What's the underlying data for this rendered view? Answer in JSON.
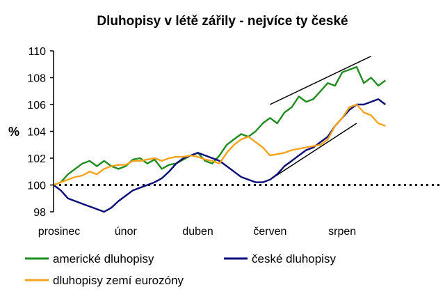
{
  "chart_data": {
    "type": "line",
    "title": "Dluhopisy v létě zářily - nejvíce ty české",
    "ylabel": "%",
    "xlabel": "",
    "ylim": [
      98,
      110
    ],
    "yticks": [
      98,
      100,
      102,
      104,
      106,
      108,
      110
    ],
    "xlim": [
      0,
      9.5
    ],
    "xtick_labels": [
      {
        "label": "prosinec",
        "x": 0
      },
      {
        "label": "únor",
        "x": 2
      },
      {
        "label": "duben",
        "x": 4
      },
      {
        "label": "červen",
        "x": 6
      },
      {
        "label": "srpen",
        "x": 8
      }
    ],
    "baseline": 100,
    "grid": false,
    "legend_position": "bottom",
    "series": [
      {
        "name": "americké dluhopisy",
        "color": "#1e8c1e",
        "points": [
          [
            0,
            100
          ],
          [
            0.2,
            100.2
          ],
          [
            0.4,
            100.8
          ],
          [
            0.6,
            101.2
          ],
          [
            0.8,
            101.6
          ],
          [
            1.0,
            101.8
          ],
          [
            1.2,
            101.4
          ],
          [
            1.4,
            101.8
          ],
          [
            1.6,
            101.4
          ],
          [
            1.8,
            101.2
          ],
          [
            2.0,
            101.4
          ],
          [
            2.2,
            101.9
          ],
          [
            2.4,
            102.0
          ],
          [
            2.6,
            101.6
          ],
          [
            2.8,
            101.9
          ],
          [
            3.0,
            101.2
          ],
          [
            3.2,
            101.5
          ],
          [
            3.4,
            101.6
          ],
          [
            3.6,
            101.9
          ],
          [
            3.8,
            102.2
          ],
          [
            4.0,
            102.4
          ],
          [
            4.2,
            101.8
          ],
          [
            4.4,
            101.6
          ],
          [
            4.6,
            102.2
          ],
          [
            4.8,
            103.0
          ],
          [
            5.0,
            103.4
          ],
          [
            5.2,
            103.8
          ],
          [
            5.4,
            103.6
          ],
          [
            5.6,
            104.0
          ],
          [
            5.8,
            104.6
          ],
          [
            6.0,
            105.0
          ],
          [
            6.2,
            104.6
          ],
          [
            6.4,
            105.4
          ],
          [
            6.6,
            105.8
          ],
          [
            6.8,
            106.6
          ],
          [
            7.0,
            106.2
          ],
          [
            7.2,
            106.4
          ],
          [
            7.4,
            107.0
          ],
          [
            7.6,
            107.6
          ],
          [
            7.8,
            107.4
          ],
          [
            8.0,
            108.4
          ],
          [
            8.2,
            108.6
          ],
          [
            8.4,
            108.8
          ],
          [
            8.6,
            107.6
          ],
          [
            8.8,
            108.0
          ],
          [
            9.0,
            107.4
          ],
          [
            9.1,
            107.6
          ],
          [
            9.2,
            107.8
          ]
        ]
      },
      {
        "name": "české dluhopisy",
        "color": "#0a0a78",
        "points": [
          [
            0,
            100
          ],
          [
            0.2,
            99.6
          ],
          [
            0.4,
            99.0
          ],
          [
            0.6,
            98.8
          ],
          [
            0.8,
            98.6
          ],
          [
            1.0,
            98.4
          ],
          [
            1.2,
            98.2
          ],
          [
            1.4,
            98.0
          ],
          [
            1.6,
            98.3
          ],
          [
            1.8,
            98.8
          ],
          [
            2.0,
            99.2
          ],
          [
            2.2,
            99.6
          ],
          [
            2.4,
            99.8
          ],
          [
            2.6,
            100.0
          ],
          [
            2.8,
            100.2
          ],
          [
            3.0,
            100.5
          ],
          [
            3.2,
            101.0
          ],
          [
            3.4,
            101.6
          ],
          [
            3.6,
            102.0
          ],
          [
            3.8,
            102.2
          ],
          [
            4.0,
            102.4
          ],
          [
            4.2,
            102.2
          ],
          [
            4.4,
            102.0
          ],
          [
            4.6,
            101.8
          ],
          [
            4.8,
            101.4
          ],
          [
            5.0,
            101.0
          ],
          [
            5.2,
            100.6
          ],
          [
            5.4,
            100.4
          ],
          [
            5.6,
            100.2
          ],
          [
            5.8,
            100.2
          ],
          [
            6.0,
            100.4
          ],
          [
            6.2,
            100.8
          ],
          [
            6.4,
            101.4
          ],
          [
            6.6,
            101.8
          ],
          [
            6.8,
            102.2
          ],
          [
            7.0,
            102.6
          ],
          [
            7.2,
            102.8
          ],
          [
            7.4,
            103.2
          ],
          [
            7.6,
            103.6
          ],
          [
            7.8,
            104.4
          ],
          [
            8.0,
            105.0
          ],
          [
            8.2,
            105.6
          ],
          [
            8.4,
            106.0
          ],
          [
            8.6,
            106.0
          ],
          [
            8.8,
            106.2
          ],
          [
            9.0,
            106.4
          ],
          [
            9.2,
            106.0
          ]
        ]
      },
      {
        "name": "dluhopisy zemí eurozóny",
        "color": "#f5a21e",
        "points": [
          [
            0,
            100
          ],
          [
            0.2,
            100.2
          ],
          [
            0.4,
            100.4
          ],
          [
            0.6,
            100.6
          ],
          [
            0.8,
            100.7
          ],
          [
            1.0,
            101.0
          ],
          [
            1.2,
            100.8
          ],
          [
            1.4,
            101.2
          ],
          [
            1.6,
            101.4
          ],
          [
            1.8,
            101.5
          ],
          [
            2.0,
            101.5
          ],
          [
            2.2,
            101.8
          ],
          [
            2.4,
            101.8
          ],
          [
            2.6,
            101.9
          ],
          [
            2.8,
            102.0
          ],
          [
            3.0,
            101.8
          ],
          [
            3.2,
            102.0
          ],
          [
            3.4,
            102.1
          ],
          [
            3.6,
            102.1
          ],
          [
            3.8,
            102.2
          ],
          [
            4.0,
            102.1
          ],
          [
            4.2,
            101.9
          ],
          [
            4.4,
            101.8
          ],
          [
            4.6,
            101.6
          ],
          [
            4.8,
            102.4
          ],
          [
            5.0,
            103.0
          ],
          [
            5.2,
            103.4
          ],
          [
            5.4,
            103.6
          ],
          [
            5.6,
            103.2
          ],
          [
            5.8,
            102.8
          ],
          [
            6.0,
            102.2
          ],
          [
            6.2,
            102.3
          ],
          [
            6.4,
            102.4
          ],
          [
            6.6,
            102.6
          ],
          [
            6.8,
            102.7
          ],
          [
            7.0,
            102.8
          ],
          [
            7.2,
            102.9
          ],
          [
            7.4,
            103.0
          ],
          [
            7.6,
            103.4
          ],
          [
            7.8,
            104.4
          ],
          [
            8.0,
            105.0
          ],
          [
            8.2,
            105.8
          ],
          [
            8.4,
            106.0
          ],
          [
            8.6,
            105.4
          ],
          [
            8.8,
            105.2
          ],
          [
            9.0,
            104.6
          ],
          [
            9.2,
            104.4
          ]
        ]
      }
    ],
    "annotations": [
      {
        "kind": "trend-line",
        "from": [
          6.0,
          106.0
        ],
        "to": [
          8.8,
          109.6
        ]
      },
      {
        "kind": "trend-line",
        "from": [
          6.0,
          100.4
        ],
        "to": [
          8.4,
          104.6
        ]
      }
    ]
  }
}
